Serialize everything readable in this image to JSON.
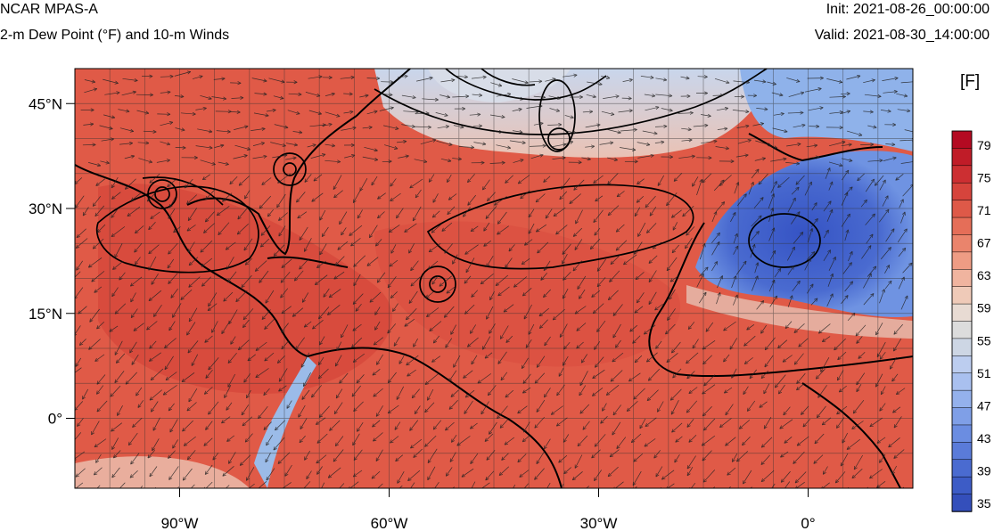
{
  "header": {
    "title": "NCAR MPAS-A",
    "subtitle": "2-m Dew Point (°F) and 10-m Winds",
    "init": "Init: 2021-08-26_00:00:00",
    "valid": "Valid: 2021-08-30_14:00:00"
  },
  "map": {
    "lon_range": [
      -105,
      15
    ],
    "lat_range": [
      -10,
      50
    ],
    "lon_ticks": [
      {
        "value": -90,
        "label": "90°W"
      },
      {
        "value": -60,
        "label": "60°W"
      },
      {
        "value": -30,
        "label": "30°W"
      },
      {
        "value": 0,
        "label": "0°"
      }
    ],
    "lat_ticks": [
      {
        "value": 45,
        "label": "45°N"
      },
      {
        "value": 30,
        "label": "30°N"
      },
      {
        "value": 15,
        "label": "15°N"
      },
      {
        "value": 0,
        "label": "0°"
      }
    ],
    "grid_spacing_deg": 5,
    "colors": {
      "warm": "#e05a47",
      "warm_dark": "#cc3f33",
      "neutral": "#e8e8e8",
      "cool": "#8fb2ea",
      "cold": "#3f5fc9"
    }
  },
  "colorbar": {
    "unit": "[F]",
    "levels": [
      79,
      75,
      71,
      67,
      63,
      59,
      55,
      51,
      47,
      43,
      39,
      35
    ],
    "colors": [
      "#b40a22",
      "#c01c28",
      "#cc2f32",
      "#d6443c",
      "#de5948",
      "#e56e58",
      "#ea846c",
      "#ee9c84",
      "#f0b49f",
      "#efcab8",
      "#e8dbd3",
      "#dcdcdc",
      "#cdd6e4",
      "#bccdef",
      "#a9c0ef",
      "#94b1ec",
      "#7f9fe7",
      "#6b8de1",
      "#5a7bd9",
      "#4a6bd0",
      "#3d5cc6",
      "#344fbb"
    ]
  }
}
